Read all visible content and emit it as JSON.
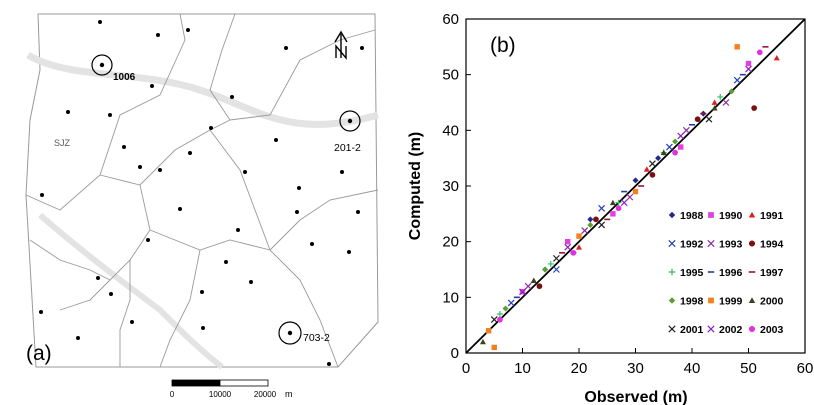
{
  "map": {
    "panel_label": "(a)",
    "region_label": "SJZ",
    "wells": [
      {
        "id": "1006"
      },
      {
        "id": "201-2"
      },
      {
        "id": "703-2"
      }
    ],
    "scale_bar": {
      "ticks": [
        "0",
        "10000",
        "20000"
      ],
      "unit": "m"
    },
    "north_arrow": "north-arrow-icon"
  },
  "chart_data": {
    "type": "scatter",
    "panel_label": "(b)",
    "xlabel": "Observed (m)",
    "ylabel": "Computed (m)",
    "xlim": [
      0,
      60
    ],
    "ylim": [
      0,
      60
    ],
    "xticks": [
      "0",
      "10",
      "20",
      "30",
      "40",
      "50",
      "60"
    ],
    "yticks": [
      "0",
      "10",
      "20",
      "30",
      "40",
      "50",
      "60"
    ],
    "grid": false,
    "legend_position": "bottom-right",
    "reference_line": {
      "x": [
        0,
        60
      ],
      "y": [
        0,
        60
      ]
    },
    "series": [
      {
        "name": "1988",
        "marker": "diamond",
        "color": "#1f2a8c",
        "x": [
          14,
          22,
          30,
          34,
          42
        ],
        "y": [
          15,
          24,
          31,
          35,
          43
        ]
      },
      {
        "name": "1990",
        "marker": "square",
        "color": "#e040e0",
        "x": [
          10,
          18,
          26,
          38,
          50
        ],
        "y": [
          11,
          20,
          25,
          37,
          52
        ]
      },
      {
        "name": "1991",
        "marker": "triangle",
        "color": "#e02020",
        "x": [
          12,
          20,
          32,
          44,
          55
        ],
        "y": [
          13,
          19,
          33,
          45,
          53
        ]
      },
      {
        "name": "1992",
        "marker": "x",
        "color": "#2040c0",
        "x": [
          8,
          16,
          24,
          36,
          48
        ],
        "y": [
          9,
          15,
          26,
          37,
          49
        ]
      },
      {
        "name": "1993",
        "marker": "x",
        "color": "#8a2aa0",
        "x": [
          11,
          21,
          29,
          39,
          46
        ],
        "y": [
          12,
          22,
          28,
          40,
          45
        ]
      },
      {
        "name": "1994",
        "marker": "circle",
        "color": "#7a1010",
        "x": [
          13,
          23,
          33,
          41,
          51
        ],
        "y": [
          12,
          24,
          32,
          42,
          44
        ]
      },
      {
        "name": "1995",
        "marker": "plus",
        "color": "#30c060",
        "x": [
          6,
          15,
          27,
          35,
          45
        ],
        "y": [
          7,
          16,
          27,
          36,
          46
        ]
      },
      {
        "name": "1996",
        "marker": "dash",
        "color": "#2a3aa0",
        "x": [
          9,
          19,
          28,
          40,
          49
        ],
        "y": [
          10,
          18,
          29,
          41,
          50
        ]
      },
      {
        "name": "1997",
        "marker": "dash",
        "color": "#a0103a",
        "x": [
          17,
          25,
          31,
          42,
          53
        ],
        "y": [
          18,
          24,
          30,
          43,
          55
        ]
      },
      {
        "name": "1998",
        "marker": "diamond",
        "color": "#5aa030",
        "x": [
          7,
          14,
          22,
          37,
          47
        ],
        "y": [
          8,
          15,
          23,
          38,
          47
        ]
      },
      {
        "name": "1999",
        "marker": "square",
        "color": "#f08020",
        "x": [
          4,
          5,
          20,
          30,
          48
        ],
        "y": [
          4,
          1,
          21,
          29,
          55
        ]
      },
      {
        "name": "2000",
        "marker": "triangle",
        "color": "#404020",
        "x": [
          3,
          12,
          26,
          35,
          44
        ],
        "y": [
          2,
          13,
          27,
          36,
          44
        ]
      },
      {
        "name": "2001",
        "marker": "x",
        "color": "#202020",
        "x": [
          5,
          16,
          24,
          33,
          43
        ],
        "y": [
          6,
          17,
          23,
          34,
          42
        ]
      },
      {
        "name": "2002",
        "marker": "x",
        "color": "#9020c0",
        "x": [
          10,
          18,
          28,
          38,
          50
        ],
        "y": [
          11,
          19,
          27,
          39,
          51
        ]
      },
      {
        "name": "2003",
        "marker": "circle",
        "color": "#e030e0",
        "x": [
          6,
          19,
          27,
          37,
          52
        ],
        "y": [
          6,
          18,
          26,
          36,
          54
        ]
      }
    ]
  }
}
